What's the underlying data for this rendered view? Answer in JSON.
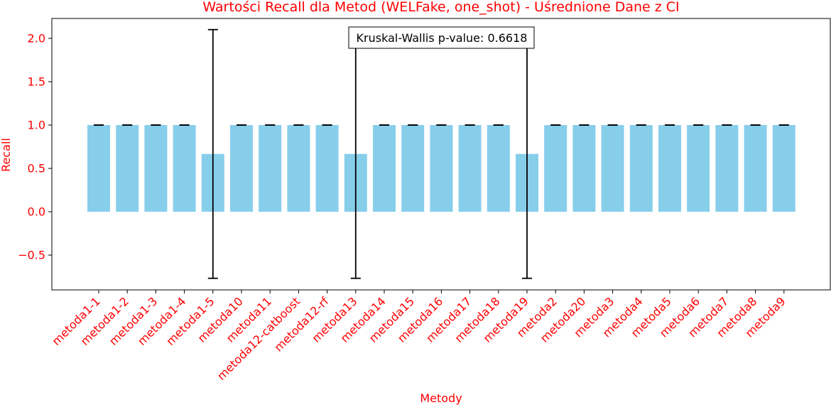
{
  "chart_data": {
    "type": "bar",
    "title": "Wartości Recall dla Metod (WELFake, one_shot) - Uśrednione Dane z CI",
    "xlabel": "Metody",
    "ylabel": "Recall",
    "annotation": "Kruskal-Wallis p-value: 0.6618",
    "categories": [
      "metoda1-1",
      "metoda1-2",
      "metoda1-3",
      "metoda1-4",
      "metoda1-5",
      "metoda10",
      "metoda11",
      "metoda12-catboost",
      "metoda12-rf",
      "metoda13",
      "metoda14",
      "metoda15",
      "metoda16",
      "metoda17",
      "metoda18",
      "metoda19",
      "metoda2",
      "metoda20",
      "metoda3",
      "metoda4",
      "metoda5",
      "metoda6",
      "metoda7",
      "metoda8",
      "metoda9"
    ],
    "values": [
      1.0,
      1.0,
      1.0,
      1.0,
      0.667,
      1.0,
      1.0,
      1.0,
      1.0,
      0.667,
      1.0,
      1.0,
      1.0,
      1.0,
      1.0,
      0.667,
      1.0,
      1.0,
      1.0,
      1.0,
      1.0,
      1.0,
      1.0,
      1.0,
      1.0
    ],
    "ci_low": [
      1.0,
      1.0,
      1.0,
      1.0,
      -0.768,
      1.0,
      1.0,
      1.0,
      1.0,
      -0.768,
      1.0,
      1.0,
      1.0,
      1.0,
      1.0,
      -0.768,
      1.0,
      1.0,
      1.0,
      1.0,
      1.0,
      1.0,
      1.0,
      1.0,
      1.0
    ],
    "ci_high": [
      1.0,
      1.0,
      1.0,
      1.0,
      2.101,
      1.0,
      1.0,
      1.0,
      1.0,
      2.101,
      1.0,
      1.0,
      1.0,
      1.0,
      1.0,
      2.101,
      1.0,
      1.0,
      1.0,
      1.0,
      1.0,
      1.0,
      1.0,
      1.0,
      1.0
    ],
    "yticks": [
      "−0.5",
      "0.0",
      "0.5",
      "1.0",
      "1.5",
      "2.0"
    ],
    "ylim": [
      -0.91,
      2.23
    ],
    "grid": false,
    "colors": {
      "bar": "#87ceeb",
      "text": "#ff0000",
      "error": "#000000"
    }
  }
}
